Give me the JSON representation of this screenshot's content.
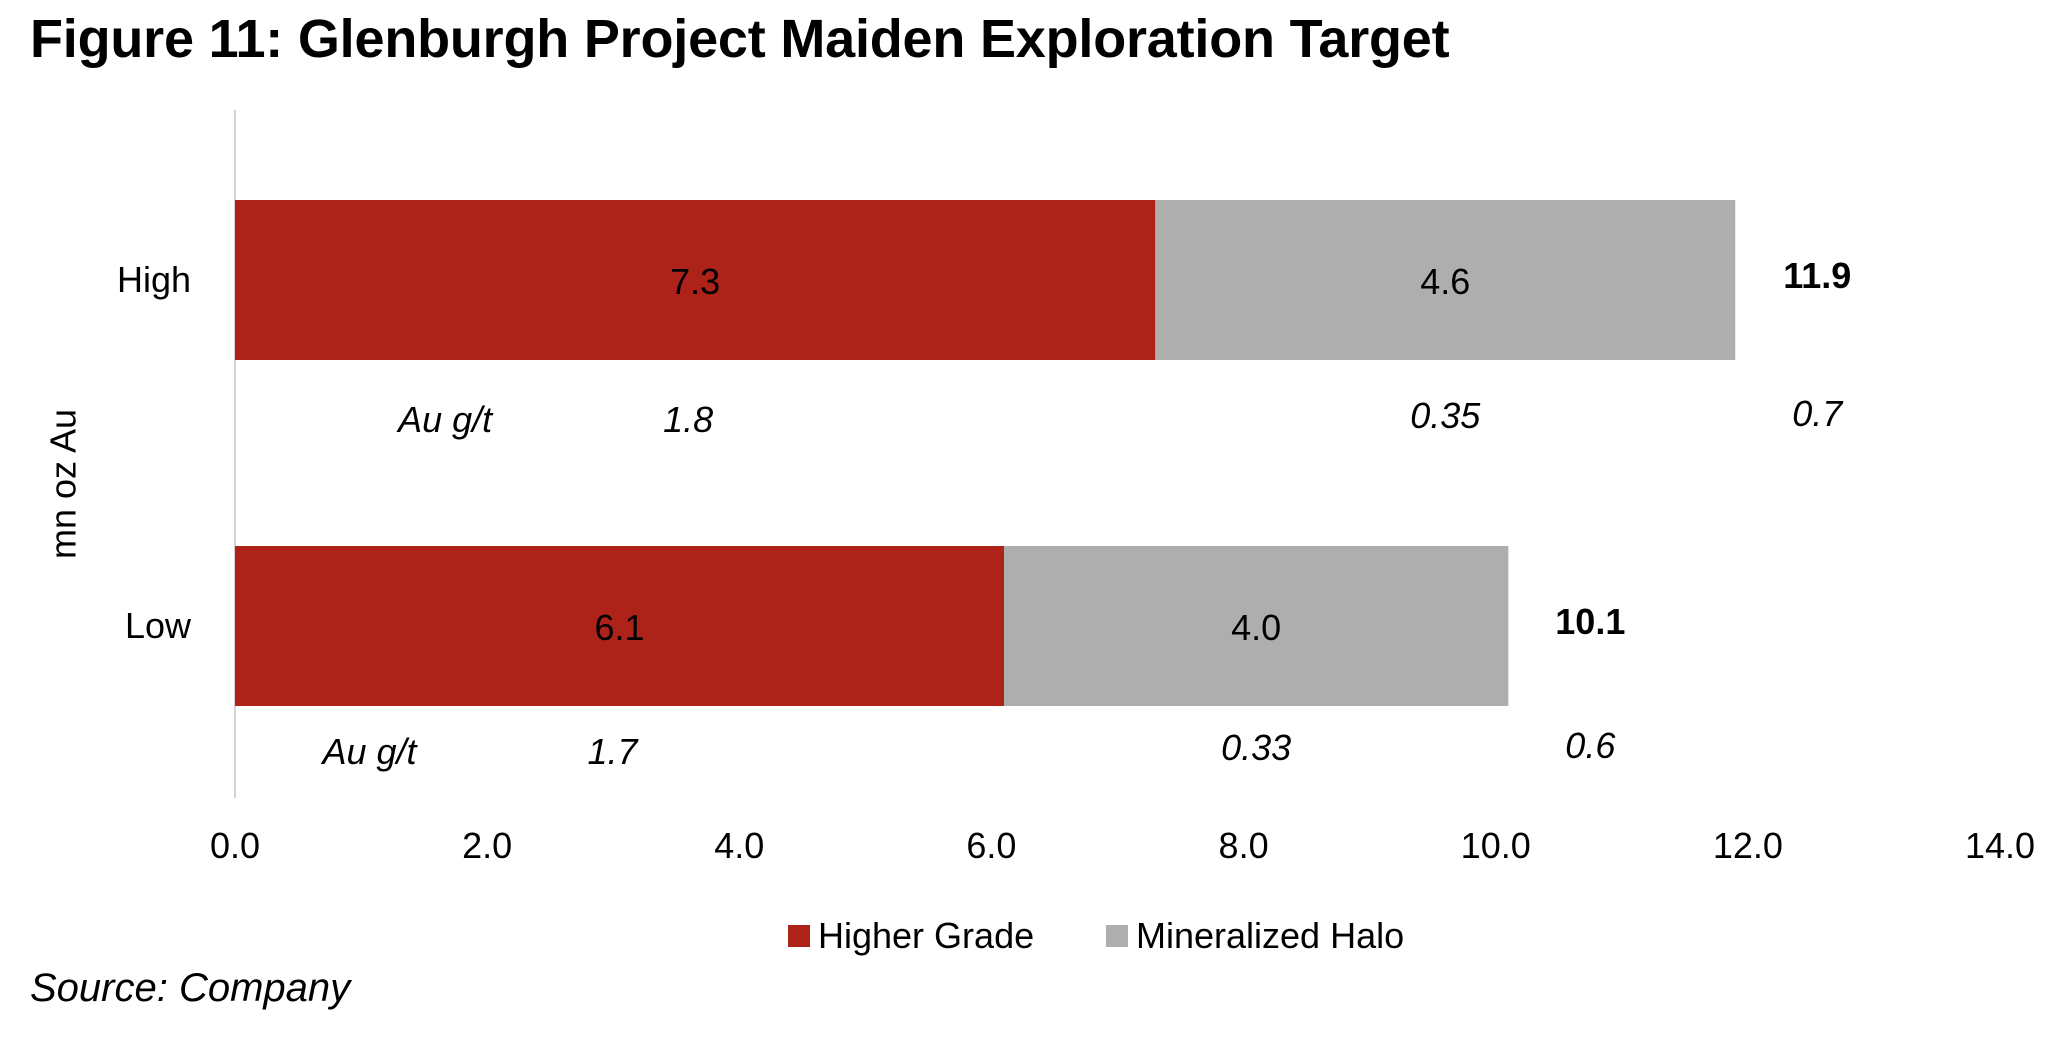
{
  "figure": {
    "title": "Figure 11: Glenburgh Project Maiden Exploration Target",
    "source": "Source: Company"
  },
  "colors": {
    "higher_grade": "#ad231a",
    "mineralized_halo": "#aeaeae",
    "axis": "#d4d4d4"
  },
  "chart_data": {
    "type": "bar",
    "orientation": "horizontal",
    "stacked": true,
    "categories": [
      "High",
      "Low"
    ],
    "series": [
      {
        "name": "Higher Grade",
        "values": [
          7.3,
          6.1
        ],
        "labels": [
          "7.3",
          "6.1"
        ]
      },
      {
        "name": "Mineralized Halo",
        "values": [
          4.6,
          4.0
        ],
        "labels": [
          "4.6",
          "4.0"
        ]
      }
    ],
    "totals": [
      "11.9",
      "10.1"
    ],
    "grade_label": "Au g/t",
    "grades": {
      "higher_grade": [
        "1.8",
        "1.7"
      ],
      "mineralized_halo": [
        "0.35",
        "0.33"
      ],
      "total": [
        "0.7",
        "0.6"
      ]
    },
    "xlabel": "",
    "ylabel": "mn oz Au",
    "xlim": [
      0,
      14
    ],
    "xticks": [
      "0.0",
      "2.0",
      "4.0",
      "6.0",
      "8.0",
      "10.0",
      "12.0",
      "14.0"
    ],
    "grid": false,
    "legend": "bottom-center"
  }
}
